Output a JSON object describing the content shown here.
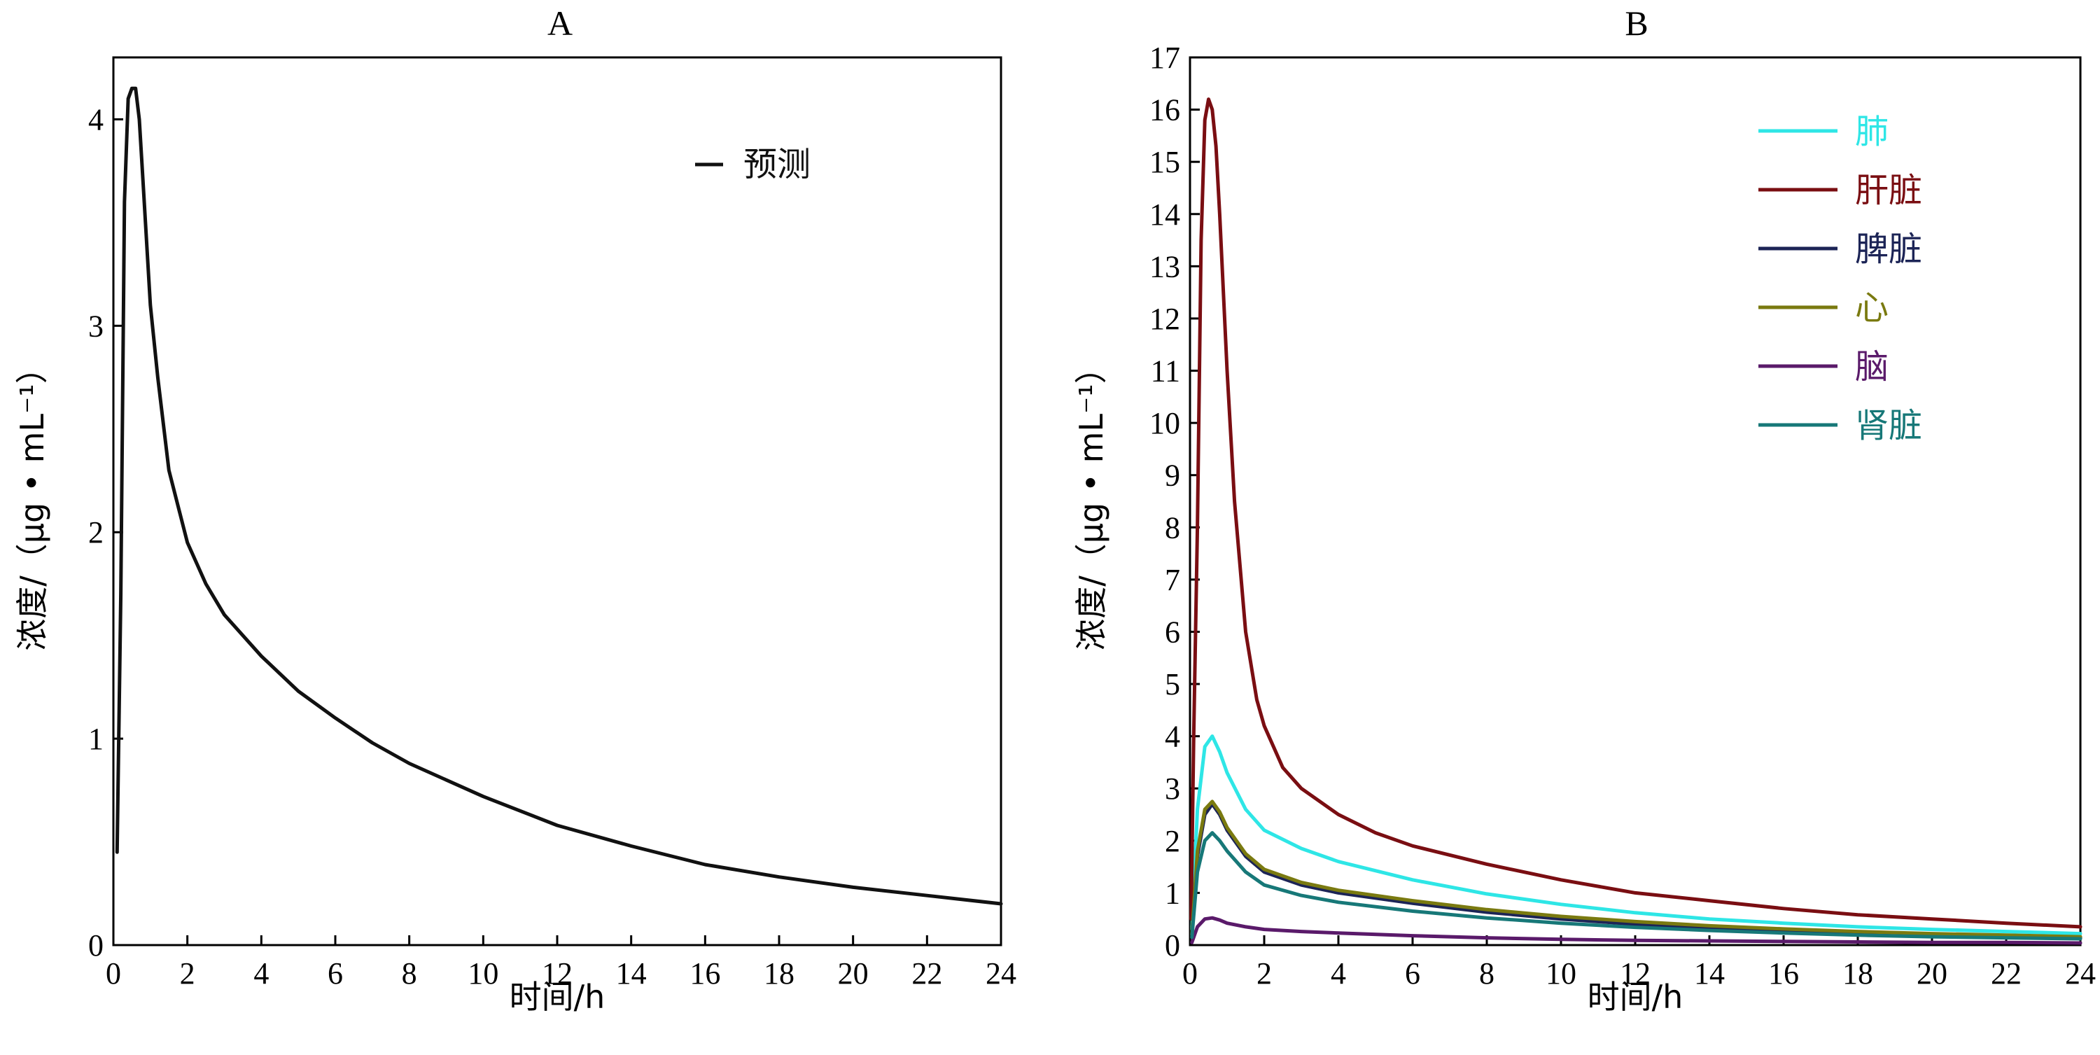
{
  "chart_data": [
    {
      "type": "line",
      "title": "A",
      "xlabel": "时间/h",
      "ylabel": "浓度/（μg • mL⁻¹）",
      "xlim": [
        0,
        24
      ],
      "ylim": [
        0,
        4.3
      ],
      "xticks": [
        0,
        2,
        4,
        6,
        8,
        10,
        12,
        14,
        16,
        18,
        20,
        22,
        24
      ],
      "yticks": [
        0,
        1,
        2,
        3,
        4
      ],
      "grid": false,
      "legend_position": "top-right",
      "series": [
        {
          "name": "预测",
          "color": "#111111",
          "x": [
            0.1,
            0.2,
            0.3,
            0.4,
            0.5,
            0.6,
            0.7,
            0.8,
            1.0,
            1.2,
            1.5,
            2,
            2.5,
            3,
            4,
            5,
            6,
            7,
            8,
            10,
            12,
            14,
            16,
            18,
            20,
            22,
            24
          ],
          "y": [
            0.45,
            1.7,
            3.6,
            4.1,
            4.15,
            4.15,
            4.0,
            3.7,
            3.1,
            2.75,
            2.3,
            1.95,
            1.75,
            1.6,
            1.4,
            1.23,
            1.1,
            0.98,
            0.88,
            0.72,
            0.58,
            0.48,
            0.39,
            0.33,
            0.28,
            0.24,
            0.2
          ]
        }
      ]
    },
    {
      "type": "line",
      "title": "B",
      "xlabel": "时间/h",
      "ylabel": "浓度/（μg • mL⁻¹）",
      "xlim": [
        0,
        24
      ],
      "ylim": [
        0,
        17
      ],
      "xticks": [
        0,
        2,
        4,
        6,
        8,
        10,
        12,
        14,
        16,
        18,
        20,
        22,
        24
      ],
      "yticks": [
        0,
        1,
        2,
        3,
        4,
        5,
        6,
        7,
        8,
        9,
        10,
        11,
        12,
        13,
        14,
        15,
        16,
        17
      ],
      "grid": false,
      "legend_position": "top-right",
      "series": [
        {
          "name": "肺",
          "color": "#2ee6e6",
          "x": [
            0.05,
            0.2,
            0.4,
            0.6,
            0.8,
            1.0,
            1.5,
            2,
            3,
            4,
            6,
            8,
            10,
            12,
            14,
            16,
            18,
            20,
            22,
            24
          ],
          "y": [
            0.3,
            2.6,
            3.8,
            4.0,
            3.7,
            3.3,
            2.6,
            2.2,
            1.85,
            1.6,
            1.25,
            0.98,
            0.78,
            0.62,
            0.5,
            0.42,
            0.35,
            0.3,
            0.26,
            0.22
          ]
        },
        {
          "name": "肝脏",
          "color": "#7a0e12",
          "x": [
            0.03,
            0.1,
            0.2,
            0.3,
            0.4,
            0.5,
            0.6,
            0.7,
            0.8,
            1.0,
            1.2,
            1.5,
            1.8,
            2,
            2.5,
            3,
            4,
            5,
            6,
            8,
            10,
            12,
            14,
            16,
            18,
            20,
            22,
            24
          ],
          "y": [
            0.5,
            4.0,
            8.0,
            13.5,
            15.8,
            16.2,
            16.0,
            15.3,
            14.0,
            11.0,
            8.5,
            6.0,
            4.7,
            4.2,
            3.4,
            3.0,
            2.5,
            2.15,
            1.9,
            1.55,
            1.25,
            1.0,
            0.85,
            0.7,
            0.58,
            0.5,
            0.42,
            0.35
          ]
        },
        {
          "name": "脾脏",
          "color": "#1c2456",
          "x": [
            0.05,
            0.2,
            0.4,
            0.6,
            0.8,
            1.0,
            1.5,
            2,
            3,
            4,
            6,
            8,
            10,
            12,
            14,
            16,
            18,
            20,
            22,
            24
          ],
          "y": [
            0.2,
            1.7,
            2.5,
            2.7,
            2.5,
            2.2,
            1.7,
            1.4,
            1.15,
            1.0,
            0.8,
            0.63,
            0.5,
            0.4,
            0.32,
            0.27,
            0.22,
            0.19,
            0.16,
            0.14
          ]
        },
        {
          "name": "心",
          "color": "#7a7a10",
          "x": [
            0.05,
            0.2,
            0.4,
            0.6,
            0.8,
            1.0,
            1.5,
            2,
            3,
            4,
            6,
            8,
            10,
            12,
            14,
            16,
            18,
            20,
            22,
            24
          ],
          "y": [
            0.2,
            1.8,
            2.6,
            2.75,
            2.55,
            2.25,
            1.75,
            1.45,
            1.2,
            1.05,
            0.85,
            0.68,
            0.55,
            0.45,
            0.37,
            0.31,
            0.26,
            0.22,
            0.19,
            0.16
          ]
        },
        {
          "name": "脑",
          "color": "#5a1a6a",
          "x": [
            0.05,
            0.2,
            0.4,
            0.6,
            0.8,
            1.0,
            1.5,
            2,
            3,
            4,
            6,
            8,
            10,
            12,
            14,
            16,
            18,
            20,
            22,
            24
          ],
          "y": [
            0.05,
            0.35,
            0.5,
            0.52,
            0.48,
            0.42,
            0.35,
            0.3,
            0.26,
            0.23,
            0.18,
            0.14,
            0.11,
            0.09,
            0.08,
            0.07,
            0.06,
            0.05,
            0.05,
            0.04
          ]
        },
        {
          "name": "肾脏",
          "color": "#177878",
          "x": [
            0.05,
            0.2,
            0.4,
            0.6,
            0.8,
            1.0,
            1.5,
            2,
            3,
            4,
            6,
            8,
            10,
            12,
            14,
            16,
            18,
            20,
            22,
            24
          ],
          "y": [
            0.15,
            1.4,
            2.0,
            2.15,
            2.0,
            1.8,
            1.4,
            1.15,
            0.95,
            0.82,
            0.65,
            0.52,
            0.42,
            0.34,
            0.28,
            0.23,
            0.19,
            0.16,
            0.14,
            0.12
          ]
        }
      ]
    }
  ]
}
